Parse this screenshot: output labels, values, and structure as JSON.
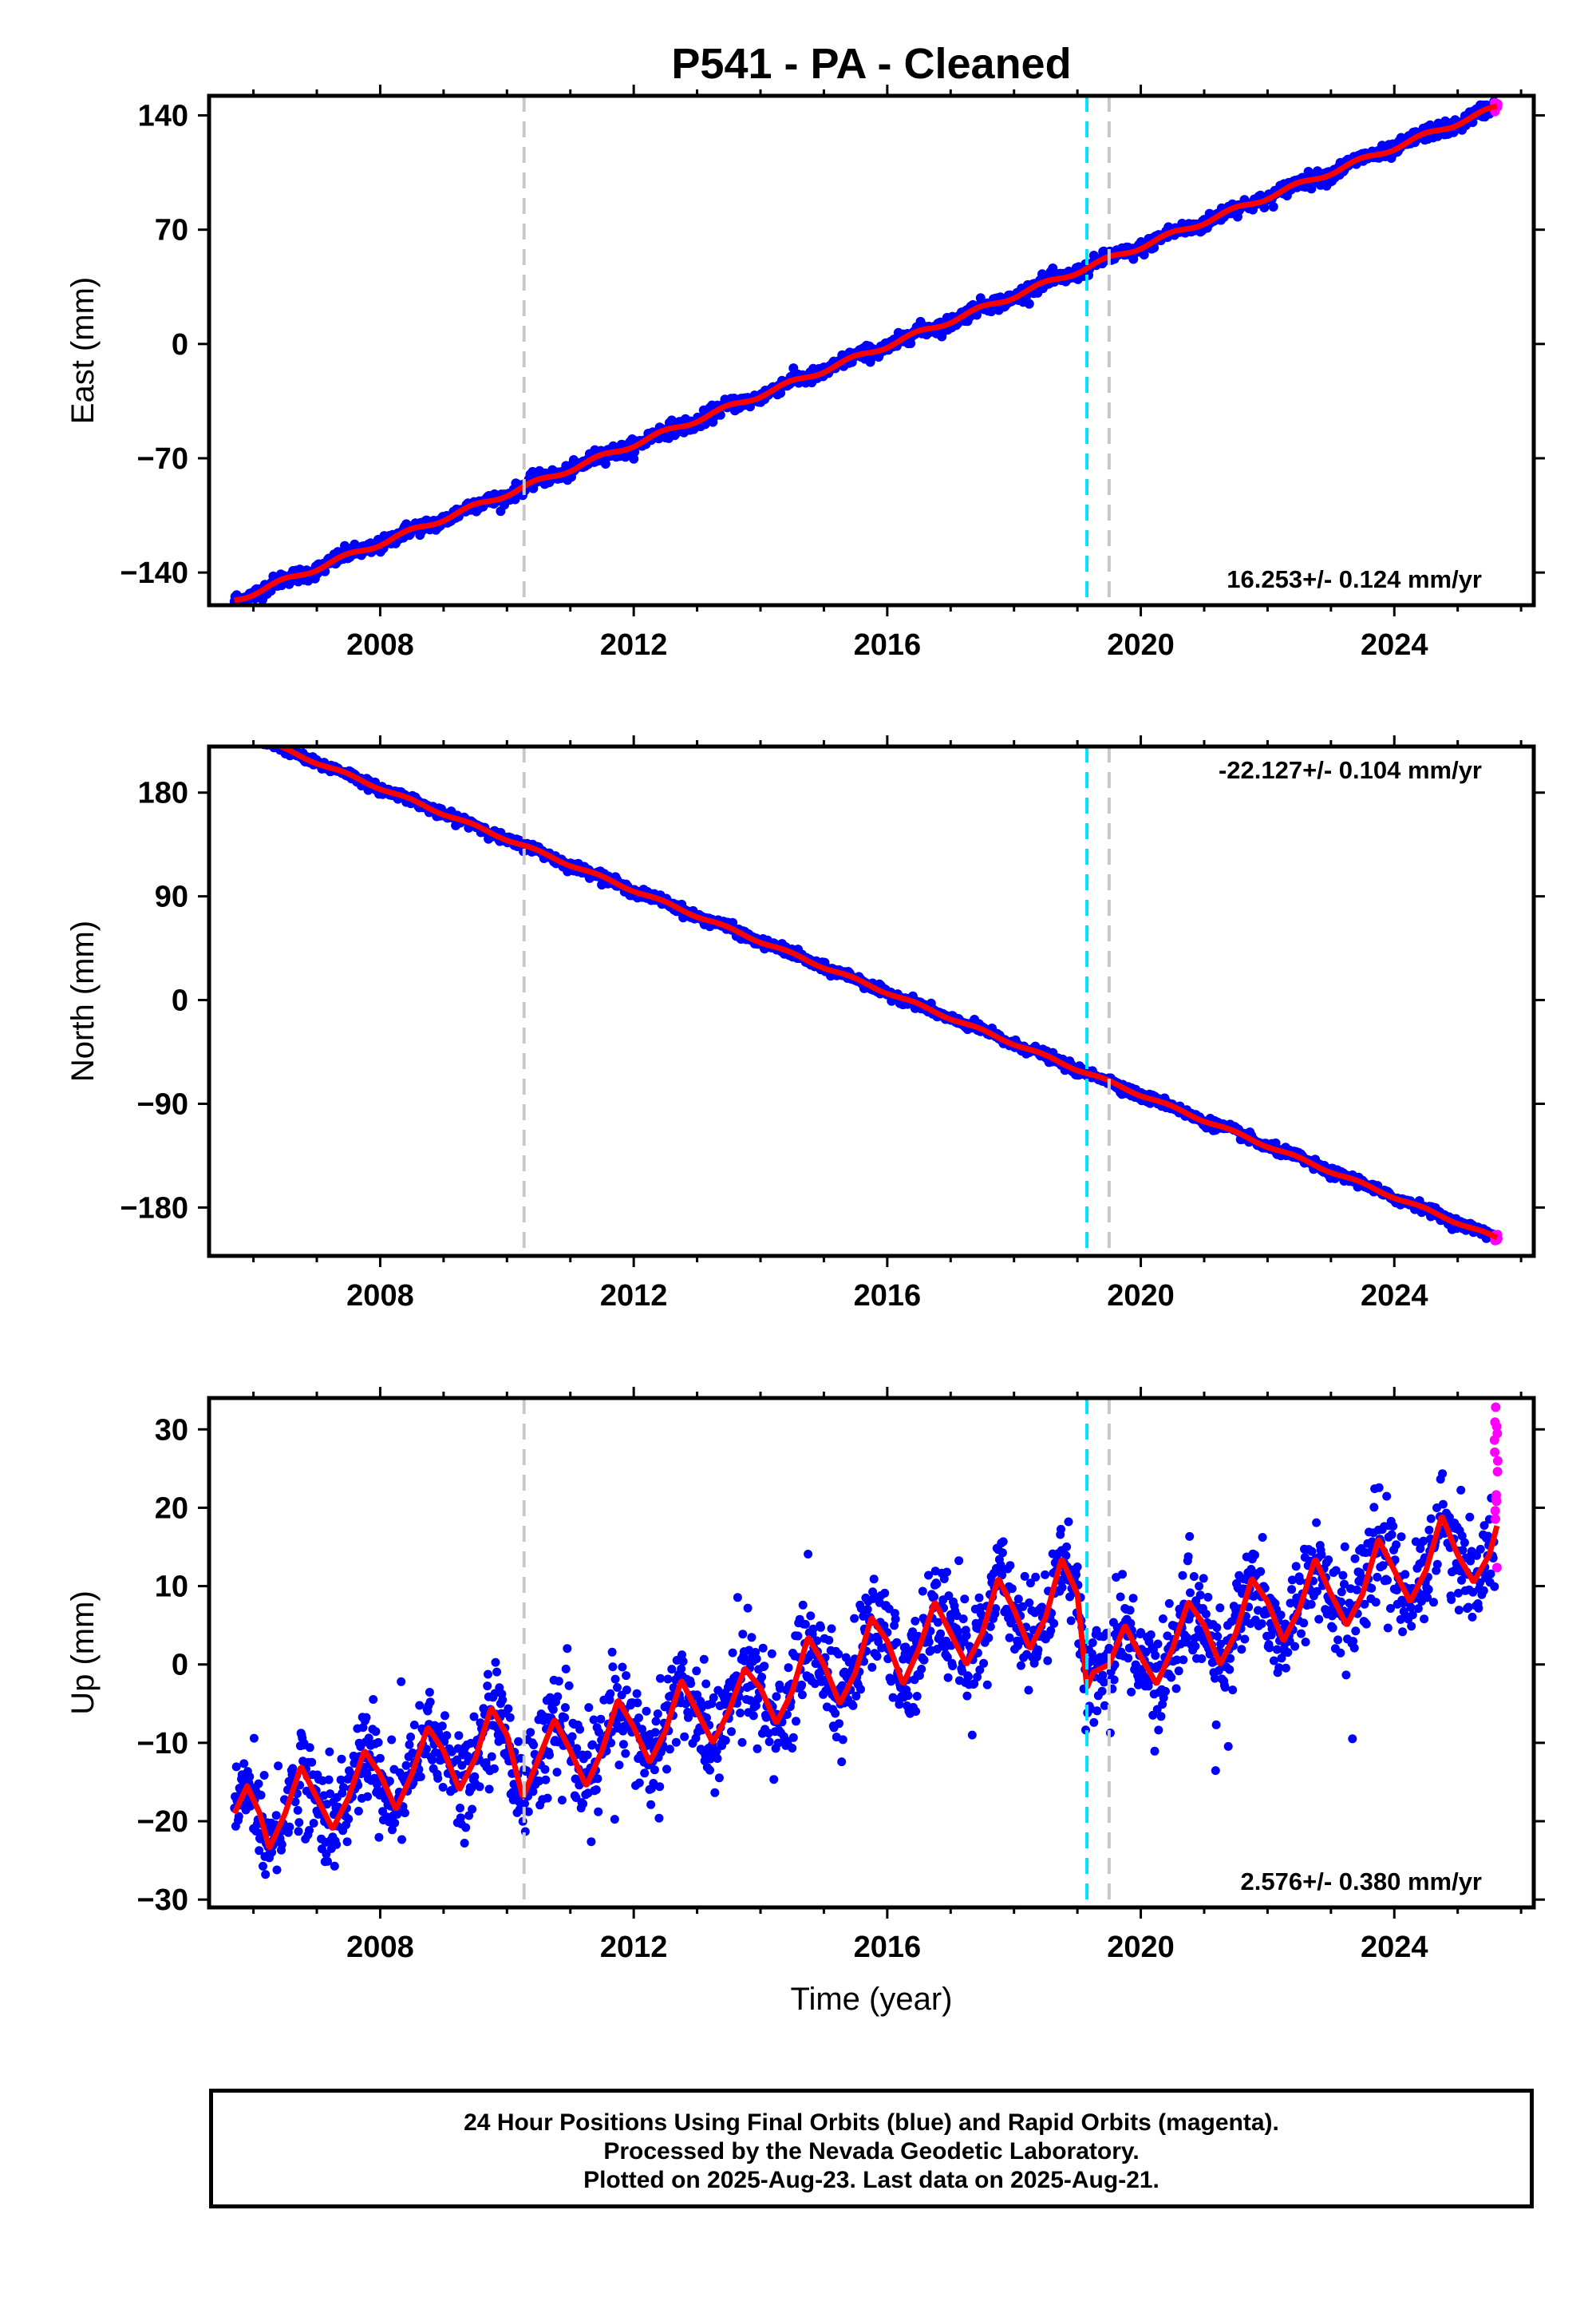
{
  "title": "P541  - PA - Cleaned",
  "colors": {
    "final_orbits": "#0000ff",
    "rapid_orbits": "#ff00ff",
    "model_fit": "#ff0000",
    "antenna_change_line": "#00e5ff",
    "equipment_change_line": "#c8c8c8"
  },
  "footer": {
    "line1": "24 Hour Positions Using Final Orbits (blue) and Rapid Orbits (magenta).",
    "line2": "Processed by the Nevada Geodetic Laboratory.",
    "line3": "Plotted on 2025-Aug-23. Last data on 2025-Aug-21."
  },
  "chart_data": [
    {
      "type": "scatter",
      "ylabel": "East (mm)",
      "xlabel": "",
      "xlim": [
        2005.3,
        2026.2
      ],
      "ylim": [
        -160,
        152
      ],
      "x_ticks": [
        2008,
        2012,
        2016,
        2020,
        2024
      ],
      "y_ticks": [
        -140,
        -70,
        0,
        70,
        140
      ],
      "rate_text": "16.253+/- 0.124 mm/yr",
      "rate_position": "bottom-right",
      "vertical_lines": [
        {
          "x": 2010.27,
          "color": "gray"
        },
        {
          "x": 2019.15,
          "color": "cyan"
        },
        {
          "x": 2019.5,
          "color": "gray"
        }
      ],
      "start": {
        "x": 2005.7,
        "y": -157
      },
      "end": {
        "x": 2025.63,
        "y": 145
      },
      "rate_mm_per_yr": 16.253,
      "annual_amplitude_mm": 1.5,
      "scatter_noise_mm": 2.2,
      "series": [
        {
          "name": "Final Orbits (blue)",
          "color": "#0000ff"
        },
        {
          "name": "Rapid Orbits (magenta)",
          "color": "#ff00ff"
        }
      ]
    },
    {
      "type": "scatter",
      "ylabel": "North (mm)",
      "xlabel": "",
      "xlim": [
        2005.3,
        2026.2
      ],
      "ylim": [
        -222,
        220
      ],
      "x_ticks": [
        2008,
        2012,
        2016,
        2020,
        2024
      ],
      "y_ticks": [
        -180,
        -90,
        0,
        90,
        180
      ],
      "rate_text": "-22.127+/- 0.104 mm/yr",
      "rate_position": "top-right",
      "vertical_lines": [
        {
          "x": 2010.27,
          "color": "gray"
        },
        {
          "x": 2019.15,
          "color": "cyan"
        },
        {
          "x": 2019.5,
          "color": "gray"
        }
      ],
      "start": {
        "x": 2005.7,
        "y": 235
      },
      "end": {
        "x": 2025.63,
        "y": -207
      },
      "rate_mm_per_yr": -22.127,
      "annual_amplitude_mm": 1.2,
      "scatter_noise_mm": 2.0,
      "series": [
        {
          "name": "Final Orbits (blue)",
          "color": "#0000ff"
        },
        {
          "name": "Rapid Orbits (magenta)",
          "color": "#ff00ff"
        }
      ]
    },
    {
      "type": "scatter",
      "ylabel": "Up (mm)",
      "xlabel": "Time (year)",
      "xlim": [
        2005.3,
        2026.2
      ],
      "ylim": [
        -31,
        34
      ],
      "x_ticks": [
        2008,
        2012,
        2016,
        2020,
        2024
      ],
      "y_ticks": [
        -30,
        -20,
        -10,
        0,
        10,
        20,
        30
      ],
      "rate_text": "2.576+/- 0.380 mm/yr",
      "rate_position": "bottom-right",
      "vertical_lines": [
        {
          "x": 2010.27,
          "color": "gray"
        },
        {
          "x": 2019.15,
          "color": "cyan"
        },
        {
          "x": 2019.5,
          "color": "gray"
        }
      ],
      "fit_samples": {
        "x": [
          2005.7,
          2005.9,
          2006.1,
          2006.25,
          2006.5,
          2006.75,
          2007.0,
          2007.25,
          2007.5,
          2007.75,
          2008.0,
          2008.25,
          2008.5,
          2008.75,
          2009.0,
          2009.25,
          2009.5,
          2009.75,
          2010.0,
          2010.25,
          2010.5,
          2010.75,
          2011.0,
          2011.25,
          2011.5,
          2011.75,
          2012.0,
          2012.25,
          2012.5,
          2012.75,
          2013.0,
          2013.25,
          2013.5,
          2013.75,
          2014.0,
          2014.25,
          2014.5,
          2014.75,
          2015.0,
          2015.25,
          2015.5,
          2015.75,
          2016.0,
          2016.25,
          2016.5,
          2016.75,
          2017.0,
          2017.25,
          2017.5,
          2017.75,
          2018.0,
          2018.25,
          2018.5,
          2018.75,
          2019.0,
          2019.15,
          2019.25,
          2019.5,
          2019.75,
          2020.0,
          2020.25,
          2020.5,
          2020.75,
          2021.0,
          2021.25,
          2021.5,
          2021.75,
          2022.0,
          2022.25,
          2022.5,
          2022.75,
          2023.0,
          2023.25,
          2023.5,
          2023.75,
          2024.0,
          2024.25,
          2024.5,
          2024.75,
          2025.0,
          2025.25,
          2025.5,
          2025.63
        ],
        "y": [
          -19,
          -15.5,
          -19,
          -23.5,
          -19,
          -13,
          -17,
          -21,
          -17,
          -11,
          -14,
          -18.5,
          -14,
          -8,
          -11,
          -16,
          -12,
          -5.5,
          -9,
          -17,
          -12,
          -7,
          -11,
          -15.5,
          -11,
          -4.5,
          -8,
          -12.5,
          -8.5,
          -2,
          -6,
          -10,
          -6,
          -0.5,
          -3,
          -7.5,
          -3.5,
          3.5,
          0,
          -5,
          -1,
          6,
          3,
          -2.5,
          2,
          8,
          4,
          0,
          4,
          11,
          7,
          2,
          6,
          13.5,
          9,
          -3,
          -1,
          0,
          5,
          1,
          -2.5,
          2,
          8,
          5,
          0,
          4,
          11,
          8,
          3,
          7,
          13.5,
          9,
          5,
          9,
          16,
          12,
          8,
          12,
          19,
          14,
          10.5,
          14,
          18
        ]
      },
      "series": [
        {
          "name": "Final Orbits (blue)",
          "color": "#0000ff"
        },
        {
          "name": "Rapid Orbits (magenta)",
          "color": "#ff00ff"
        }
      ]
    }
  ]
}
